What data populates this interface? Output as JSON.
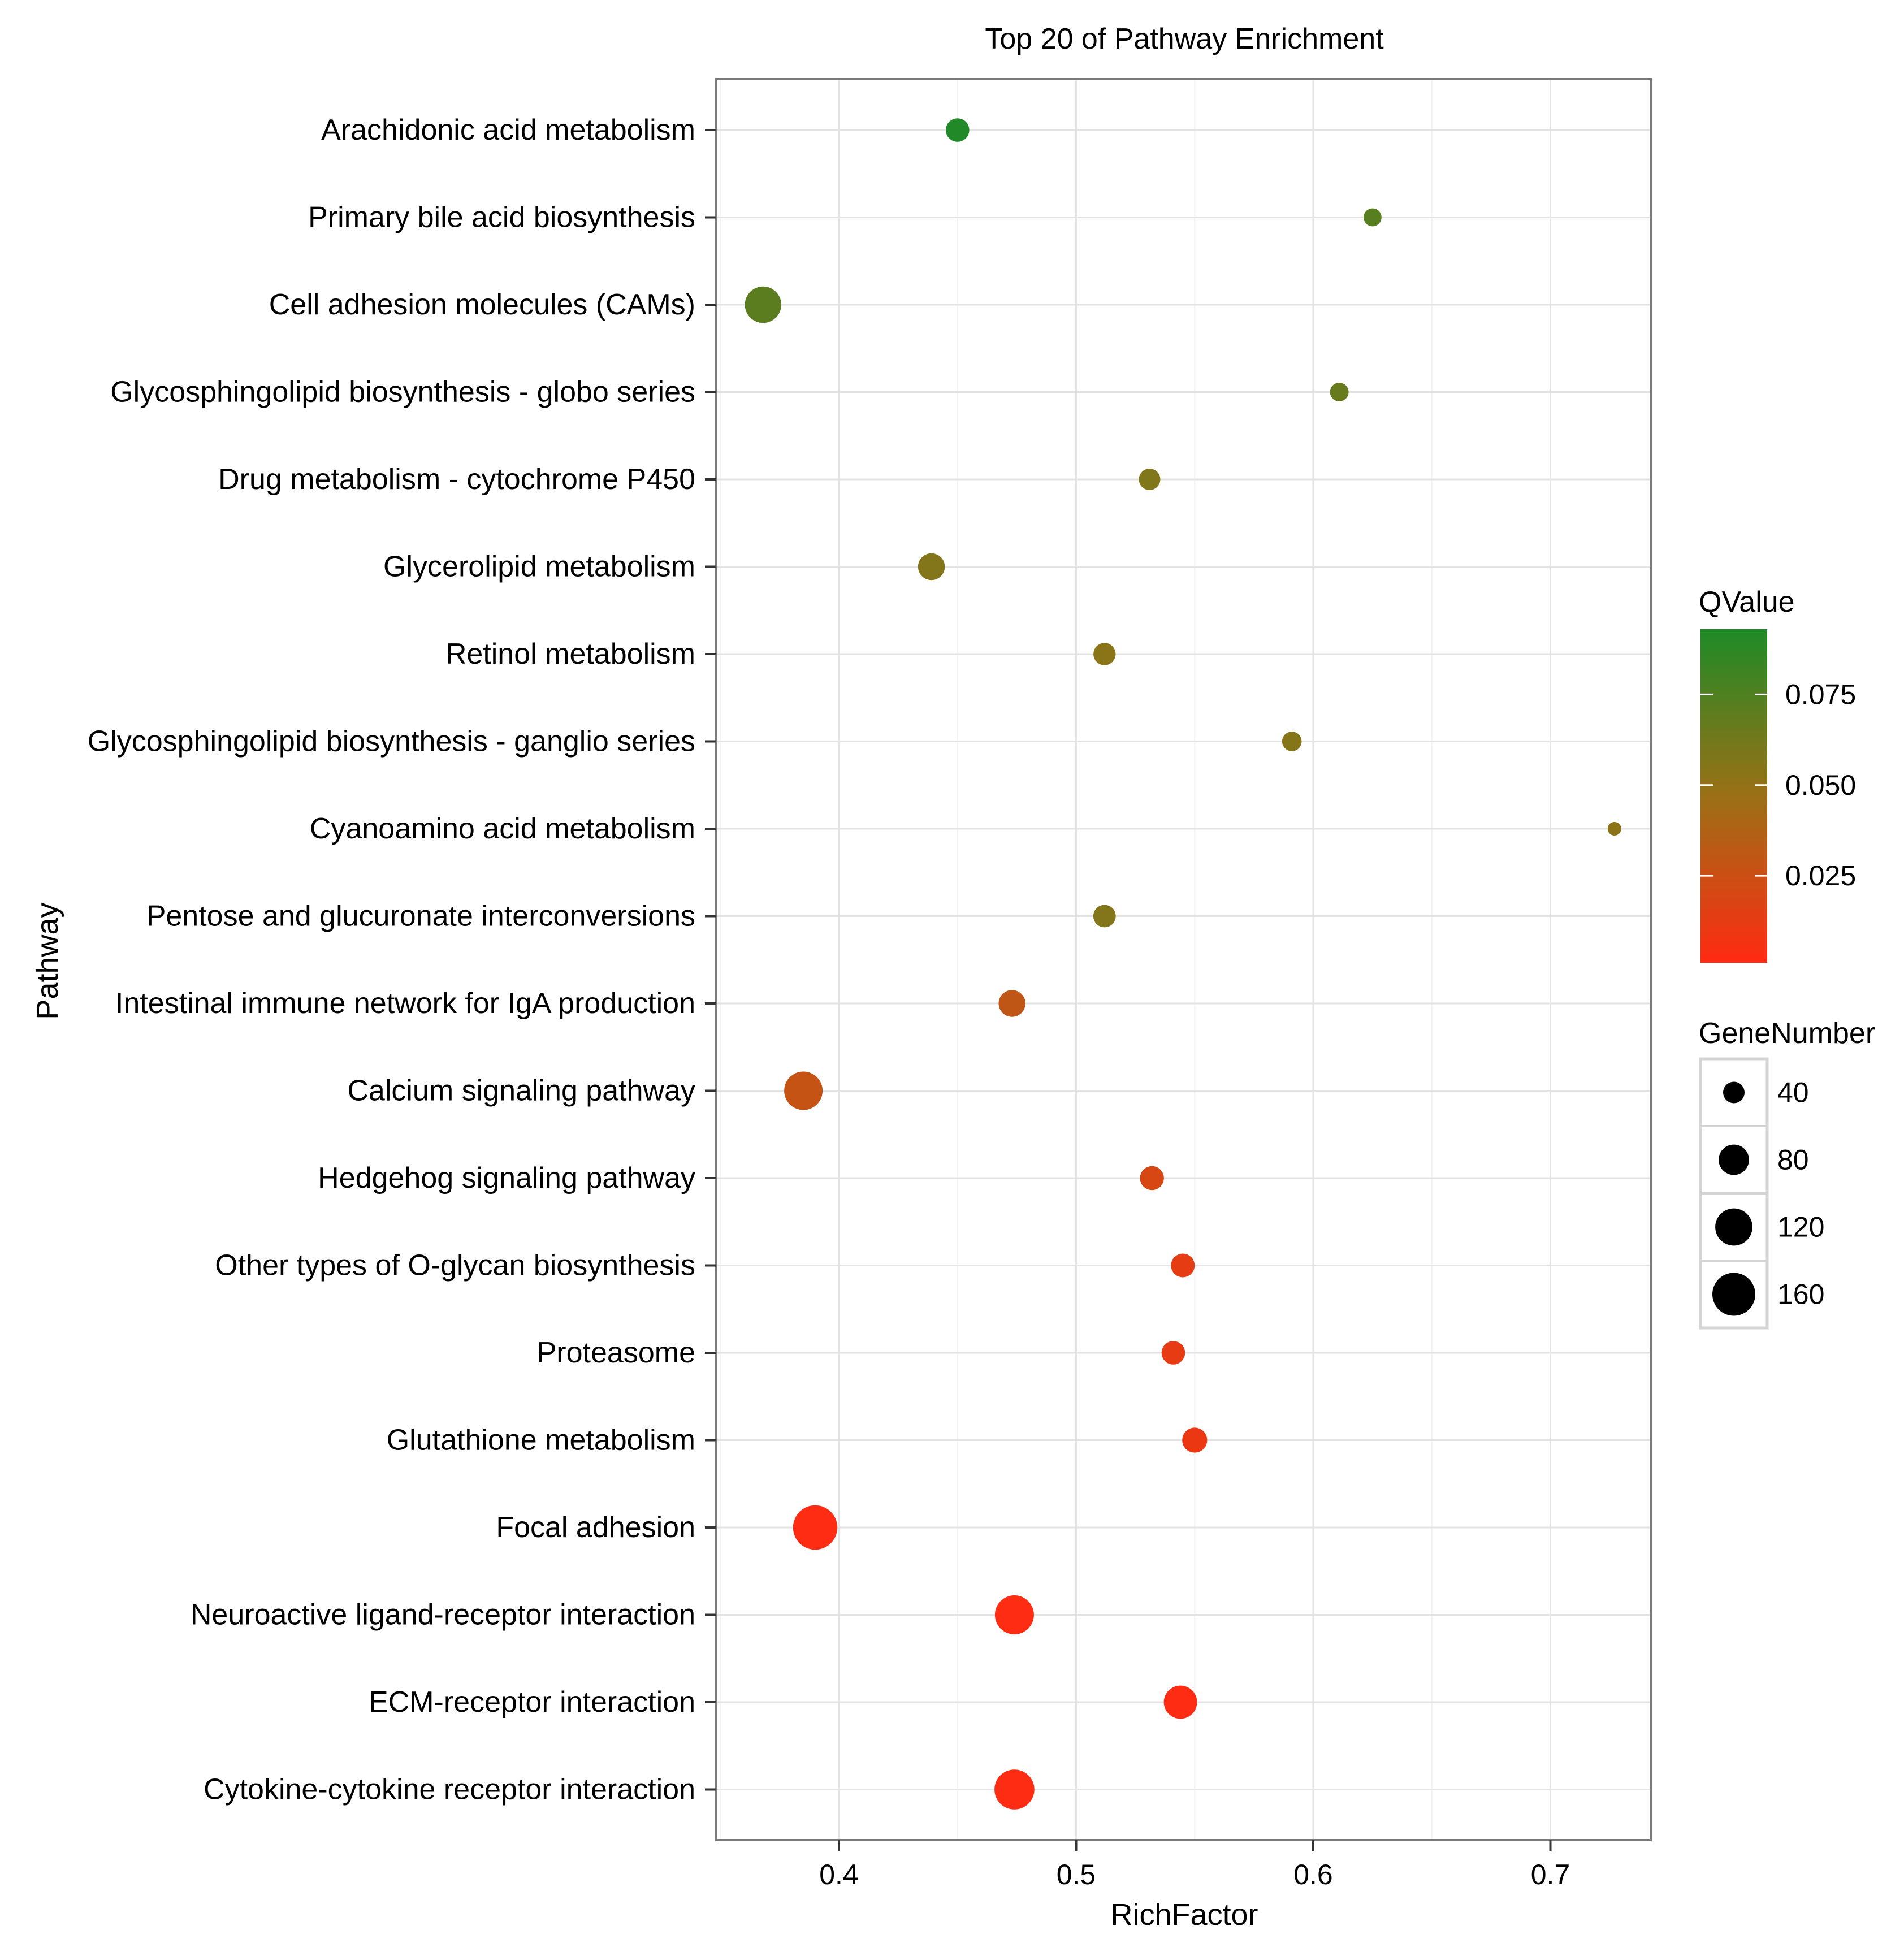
{
  "chart_data": {
    "type": "scatter",
    "title": "Top 20 of Pathway Enrichment",
    "xlabel": "RichFactor",
    "ylabel": "Pathway",
    "xlim": [
      0.35,
      0.745
    ],
    "xticks": [
      0.4,
      0.5,
      0.6,
      0.7
    ],
    "xtick_labels": [
      "0.4",
      "0.5",
      "0.6",
      "0.7"
    ],
    "grid": true,
    "pathways": [
      "Arachidonic acid metabolism",
      "Primary bile acid biosynthesis",
      "Cell adhesion molecules (CAMs)",
      "Glycosphingolipid biosynthesis - globo series",
      "Drug metabolism - cytochrome P450",
      "Glycerolipid metabolism",
      "Retinol metabolism",
      "Glycosphingolipid biosynthesis - ganglio series",
      "Cyanoamino acid metabolism",
      "Pentose and glucuronate interconversions",
      "Intestinal immune network for IgA production",
      "Calcium signaling pathway",
      "Hedgehog signaling pathway",
      "Other types of O-glycan biosynthesis",
      "Proteasome",
      "Glutathione metabolism",
      "Focal adhesion",
      "Neuroactive ligand-receptor interaction",
      "ECM-receptor interaction",
      "Cytokine-cytokine receptor interaction"
    ],
    "rich_factor": [
      0.45,
      0.625,
      0.368,
      0.611,
      0.531,
      0.439,
      0.512,
      0.591,
      0.727,
      0.512,
      0.473,
      0.385,
      0.532,
      0.545,
      0.541,
      0.55,
      0.39,
      0.474,
      0.544,
      0.474
    ],
    "q_value": [
      0.092,
      0.072,
      0.07,
      0.066,
      0.057,
      0.056,
      0.053,
      0.055,
      0.052,
      0.056,
      0.03,
      0.028,
      0.02,
      0.013,
      0.012,
      0.01,
      0.002,
      0.002,
      0.002,
      0.002
    ],
    "gene_number": [
      48,
      28,
      115,
      30,
      40,
      62,
      43,
      33,
      16,
      44,
      62,
      128,
      50,
      49,
      48,
      54,
      170,
      132,
      96,
      138
    ],
    "color_legend": {
      "title": "QValue",
      "ticks": [
        0.075,
        0.05,
        0.025
      ],
      "tick_labels": [
        "0.075",
        "0.050",
        "0.025"
      ],
      "range": [
        0.001,
        0.093
      ],
      "low_color": "#ff2a12",
      "mid_color": "#9b7016",
      "high_color": "#1e8a27",
      "placement": "right"
    },
    "size_legend": {
      "title": "GeneNumber",
      "values": [
        40,
        80,
        120,
        160
      ],
      "labels": [
        "40",
        "80",
        "120",
        "160"
      ],
      "placement": "right"
    }
  }
}
